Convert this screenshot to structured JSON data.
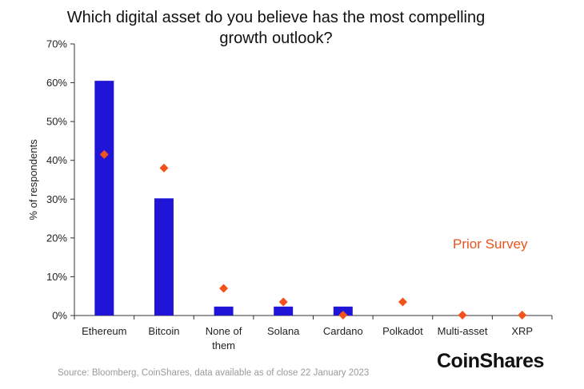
{
  "title_line1": "Which digital asset do you believe has the most compelling",
  "title_line2": "growth outlook?",
  "ylabel": "% of respondents",
  "prior_survey_label": "Prior Survey",
  "source": "Source: Bloomberg, CoinShares, data available as of close 22 January 2023",
  "brand": "CoinShares",
  "colors": {
    "bar": "#2015d6",
    "marker": "#f2531d",
    "axis": "#333333"
  },
  "chart_data": {
    "type": "bar",
    "categories": [
      "Ethereum",
      "Bitcoin",
      "None of them",
      "Solana",
      "Cardano",
      "Polkadot",
      "Multi-asset",
      "XRP"
    ],
    "category_lines": [
      [
        "Ethereum"
      ],
      [
        "Bitcoin"
      ],
      [
        "None of",
        "them"
      ],
      [
        "Solana"
      ],
      [
        "Cardano"
      ],
      [
        "Polkadot"
      ],
      [
        "Multi-asset"
      ],
      [
        "XRP"
      ]
    ],
    "series": [
      {
        "values": [
          60.5,
          30.2,
          2.3,
          2.3,
          2.3,
          0,
          0,
          0
        ]
      },
      {
        "name": "Prior Survey",
        "values": [
          41.5,
          38.0,
          7.0,
          3.5,
          0.1,
          3.5,
          0.1,
          0.1
        ]
      }
    ],
    "ylim": [
      0,
      70
    ],
    "yticks": [
      0,
      10,
      20,
      30,
      40,
      50,
      60,
      70
    ],
    "ytick_labels": [
      "0%",
      "10%",
      "20%",
      "30%",
      "40%",
      "50%",
      "60%",
      "70%"
    ],
    "title": "Which digital asset do you believe has the most compelling growth outlook?",
    "ylabel": "% of respondents",
    "grid": false
  }
}
